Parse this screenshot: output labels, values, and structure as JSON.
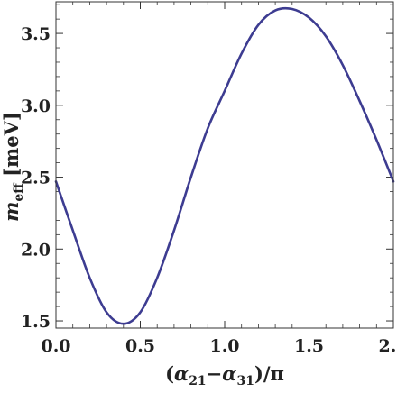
{
  "chart_data": {
    "type": "line",
    "title": "",
    "xlabel": {
      "open": "(",
      "a1": "α",
      "s1": "21",
      "minus": "−",
      "a2": "α",
      "s2": "31",
      "close": ")/π"
    },
    "ylabel": {
      "m": "m",
      "sub": "eff",
      "unit": " [meV]"
    },
    "xlim": [
      0.0,
      2.0
    ],
    "ylim": [
      1.45,
      3.72
    ],
    "xticks": [
      0.0,
      0.5,
      1.0,
      1.5,
      2.0
    ],
    "xtick_labels": [
      "0.0",
      "0.5",
      "1.0",
      "1.5",
      "2.0"
    ],
    "yticks": [
      1.5,
      2.0,
      2.5,
      3.0,
      3.5
    ],
    "ytick_labels": [
      "1.5",
      "2.0",
      "2.5",
      "3.0",
      "3.5"
    ],
    "grid": false,
    "line_color": "#3d3c91",
    "series": [
      {
        "x": [
          0.0,
          0.1,
          0.2,
          0.3,
          0.4,
          0.5,
          0.6,
          0.7,
          0.8,
          0.9,
          1.0,
          1.1,
          1.2,
          1.3,
          1.4,
          1.5,
          1.6,
          1.7,
          1.8,
          1.9,
          2.0
        ],
        "values": [
          2.47,
          2.13,
          1.8,
          1.56,
          1.48,
          1.56,
          1.8,
          2.13,
          2.5,
          2.84,
          3.1,
          3.36,
          3.56,
          3.66,
          3.67,
          3.61,
          3.48,
          3.28,
          3.03,
          2.76,
          2.47
        ]
      }
    ]
  }
}
